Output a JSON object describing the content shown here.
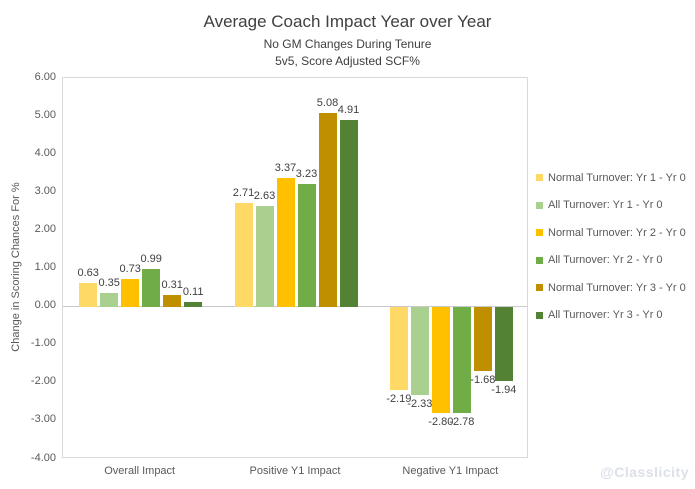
{
  "chart_data": {
    "type": "bar",
    "title": "Average Coach Impact Year over Year",
    "subtitle1": "No GM Changes During Tenure",
    "subtitle2": "5v5, Score Adjusted SCF%",
    "ylabel": "Change in Scoring Chances For %",
    "xlabel": "",
    "ylim": [
      -4,
      6
    ],
    "ytick_step": 1,
    "ytick_format": "0.00",
    "grid": false,
    "legend_position": "right",
    "categories": [
      "Overall Impact",
      "Positive Y1 Impact",
      "Negative Y1 Impact"
    ],
    "series": [
      {
        "name": "Normal Turnover: Yr 1 - Yr 0",
        "color": "#FFD966",
        "values": [
          0.63,
          2.71,
          -2.19
        ]
      },
      {
        "name": "All Turnover: Yr 1 - Yr 0",
        "color": "#A9D08E",
        "values": [
          0.35,
          2.63,
          -2.33
        ]
      },
      {
        "name": "Normal Turnover: Yr 2 - Yr 0",
        "color": "#FFC000",
        "values": [
          0.73,
          3.37,
          -2.8
        ]
      },
      {
        "name": "All Turnover: Yr 2 - Yr 0",
        "color": "#70AD47",
        "values": [
          0.99,
          3.23,
          -2.78
        ]
      },
      {
        "name": "Normal Turnover: Yr 3 - Yr 0",
        "color": "#BF8F00",
        "values": [
          0.31,
          5.08,
          -1.68
        ]
      },
      {
        "name": "All Turnover: Yr 3 - Yr 0",
        "color": "#548235",
        "values": [
          0.11,
          4.91,
          -1.94
        ]
      }
    ],
    "data_labels": true,
    "axis_color": "#d9d9d9",
    "text_color": "#404040",
    "tick_text_color": "#595959",
    "watermark": "@Classlicity",
    "watermark_color": "#dce0e9"
  }
}
